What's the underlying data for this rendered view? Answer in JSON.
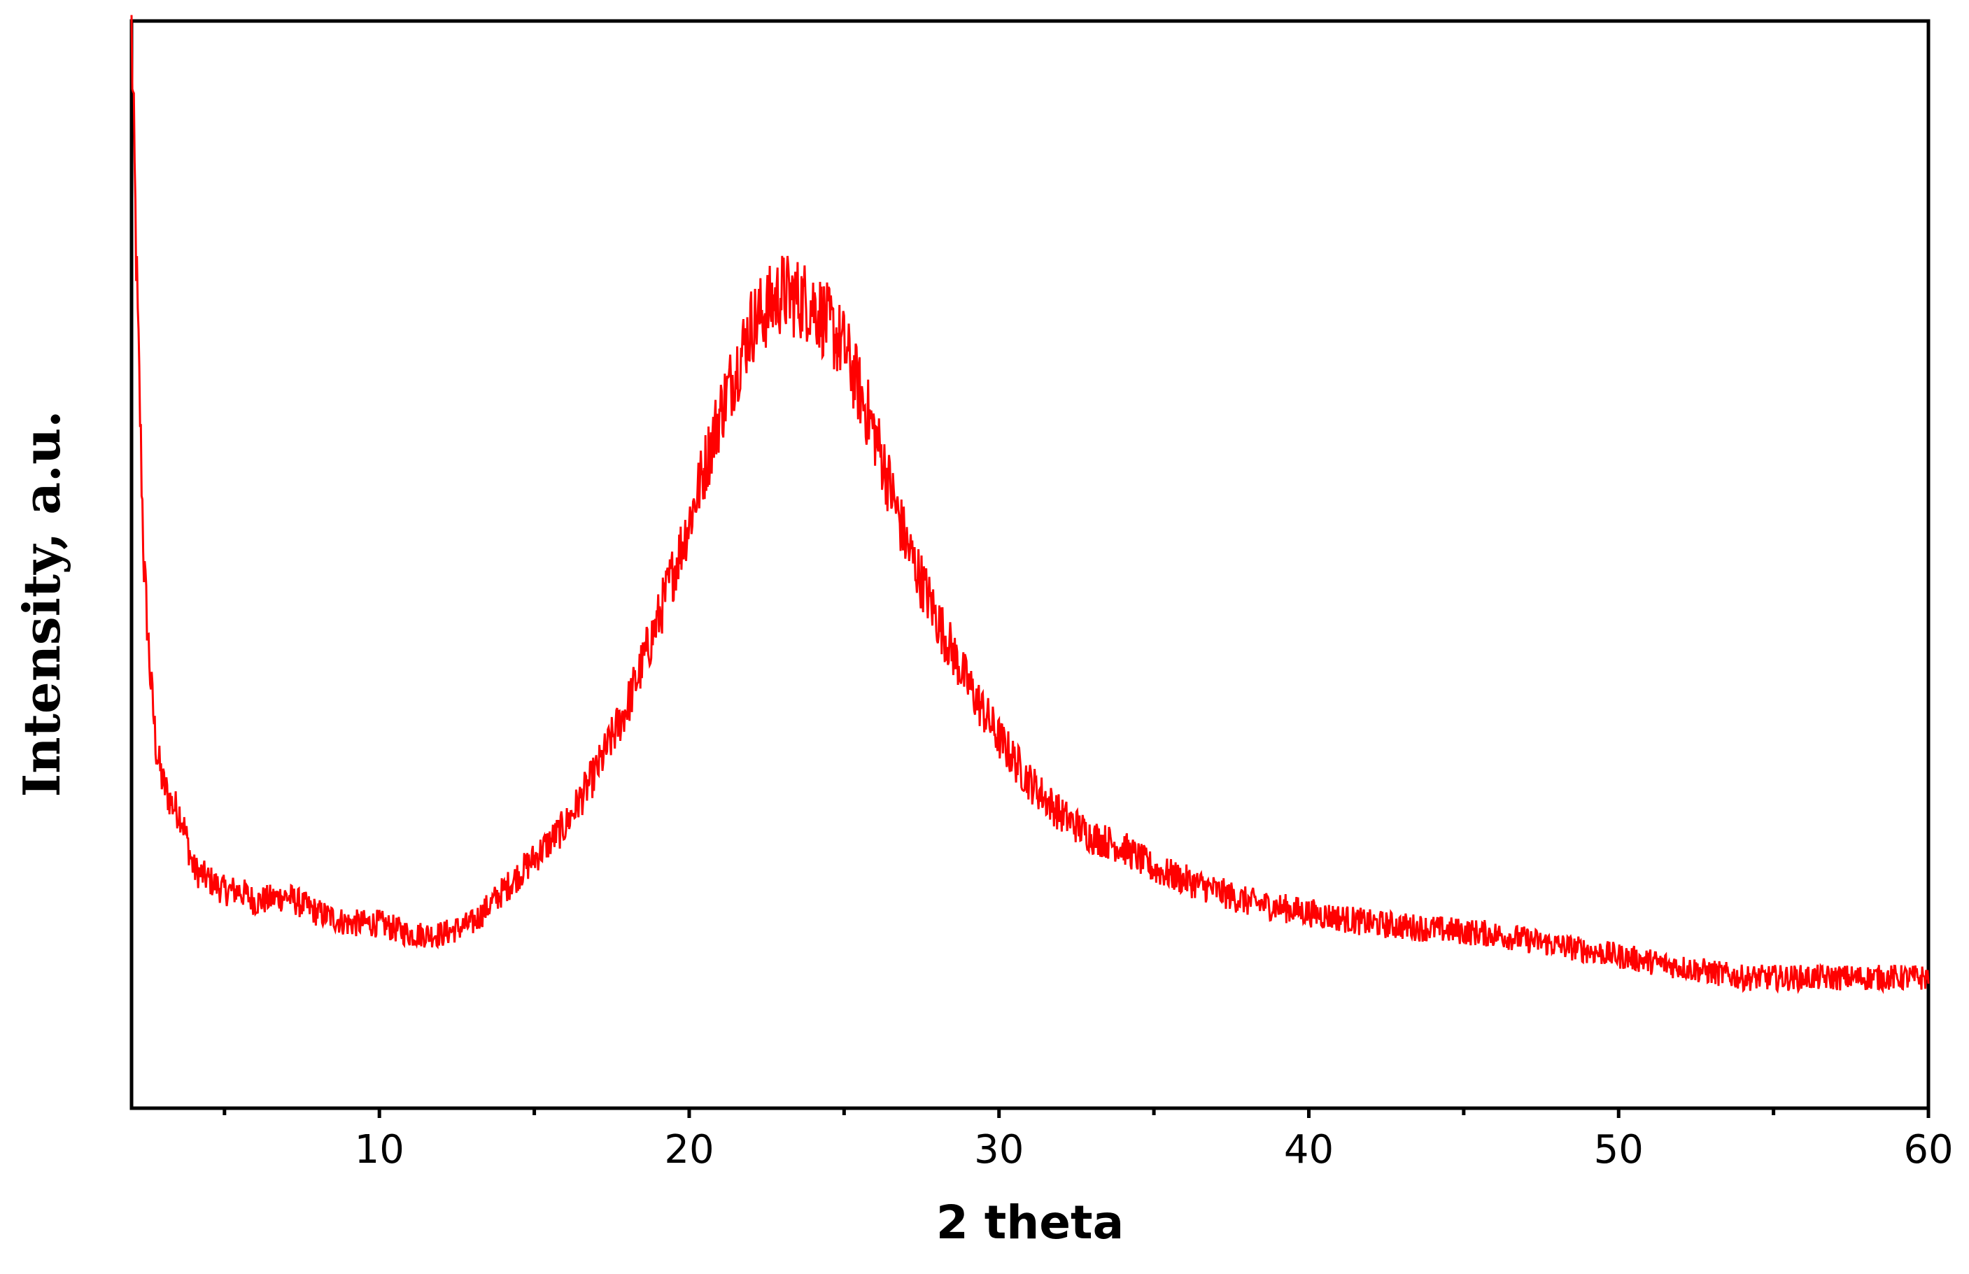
{
  "chart_data": {
    "type": "line",
    "title": "",
    "xlabel": "2 theta",
    "ylabel": "Intensity, a.u.",
    "xlim": [
      2,
      60
    ],
    "ylim": [
      0,
      1
    ],
    "x_ticks": [
      10,
      20,
      30,
      40,
      50,
      60
    ],
    "y_ticks": [],
    "grid": false,
    "legend": "none",
    "colors": {
      "line": "#ff0000",
      "axes": "#000000"
    },
    "series": [
      {
        "x": [
          2.0,
          2.2,
          2.4,
          2.6,
          2.8,
          3.0,
          3.3,
          3.6,
          4.0,
          4.5,
          5.0,
          5.5,
          6.0,
          7.0,
          8.0,
          9.0,
          10.0,
          11.0,
          12.0,
          13.0,
          14.0,
          15.0,
          16.0,
          17.0,
          18.0,
          19.0,
          20.0,
          21.0,
          22.0,
          23.0,
          24.0,
          25.0,
          26.0,
          27.0,
          28.0,
          29.0,
          30.0,
          31.0,
          32.0,
          33.0,
          34.0,
          35.0,
          36.0,
          37.0,
          38.0,
          39.0,
          40.0,
          42.0,
          44.0,
          46.0,
          48.0,
          50.0,
          52.0,
          54.0,
          56.0,
          58.0,
          60.0
        ],
        "y": [
          0.99,
          0.72,
          0.5,
          0.4,
          0.33,
          0.3,
          0.28,
          0.27,
          0.22,
          0.21,
          0.2,
          0.2,
          0.19,
          0.195,
          0.18,
          0.17,
          0.17,
          0.16,
          0.16,
          0.17,
          0.2,
          0.23,
          0.26,
          0.31,
          0.37,
          0.45,
          0.54,
          0.64,
          0.72,
          0.75,
          0.74,
          0.7,
          0.62,
          0.52,
          0.45,
          0.39,
          0.34,
          0.3,
          0.27,
          0.25,
          0.24,
          0.22,
          0.21,
          0.2,
          0.19,
          0.185,
          0.18,
          0.17,
          0.165,
          0.16,
          0.15,
          0.14,
          0.13,
          0.12,
          0.12,
          0.12,
          0.12
        ]
      }
    ]
  }
}
